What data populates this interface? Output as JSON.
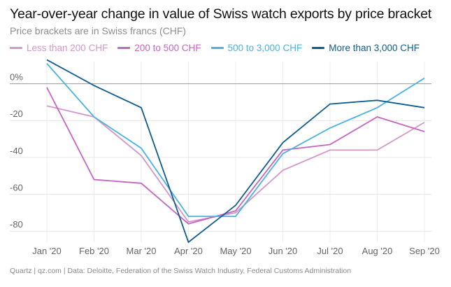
{
  "chart_data": {
    "type": "line",
    "title": "Year-over-year change in value of Swiss watch exports by price bracket",
    "subtitle": "Price brackets are in Swiss francs (CHF)",
    "categories": [
      "Jan '20",
      "Feb '20",
      "Mar '20",
      "Apr '20",
      "May '20",
      "Jun '20",
      "Jul '20",
      "Aug '20",
      "Sep '20"
    ],
    "yticks": [
      "0%",
      "-20",
      "-40",
      "-60",
      "-80"
    ],
    "ytick_values": [
      0,
      -20,
      -40,
      -60,
      -80
    ],
    "ylim": [
      -86,
      12
    ],
    "legend_position": "top-left",
    "series": [
      {
        "name": "Less than 200 CHF",
        "color": "#d397c8",
        "values": [
          -12,
          -18,
          -39,
          -75,
          -70,
          -47,
          -36,
          -36,
          -21
        ]
      },
      {
        "name": "200 to 500 CHF",
        "color": "#c466c1",
        "values": [
          -2,
          -52,
          -54,
          -76,
          -69,
          -36,
          -33,
          -18,
          -26
        ]
      },
      {
        "name": "500 to 3,000 CHF",
        "color": "#4ab3e0",
        "values": [
          11,
          -18,
          -35,
          -72,
          -72,
          -38,
          -24,
          -13,
          3
        ]
      },
      {
        "name": "More than 3,000 CHF",
        "color": "#0f5c8e",
        "values": [
          13,
          -1,
          -13,
          -86,
          -66,
          -32,
          -11,
          -9,
          -13
        ]
      }
    ]
  },
  "source": "Quartz | qz.com | Data: Deloitte, Federation of the Swiss Watch Industry, Federal Customs Administration"
}
